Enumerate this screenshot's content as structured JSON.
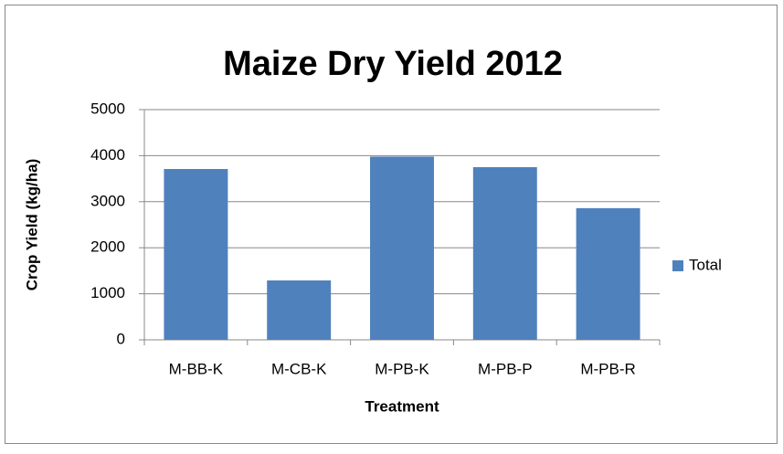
{
  "chart_data": {
    "type": "bar",
    "title": "Maize Dry Yield 2012",
    "x_label": "Treatment",
    "y_label": "Crop Yield (kg/ha)",
    "categories": [
      "M-BB-K",
      "M-CB-K",
      "M-PB-K",
      "M-PB-P",
      "M-PB-R"
    ],
    "series": [
      {
        "name": "Total",
        "color": "#4f81bd",
        "values": [
          3710,
          1290,
          3980,
          3750,
          2860
        ]
      }
    ],
    "ylim": [
      0,
      5000
    ],
    "yticks": [
      0,
      1000,
      2000,
      3000,
      4000,
      5000
    ],
    "grid": true,
    "legend": "right"
  }
}
